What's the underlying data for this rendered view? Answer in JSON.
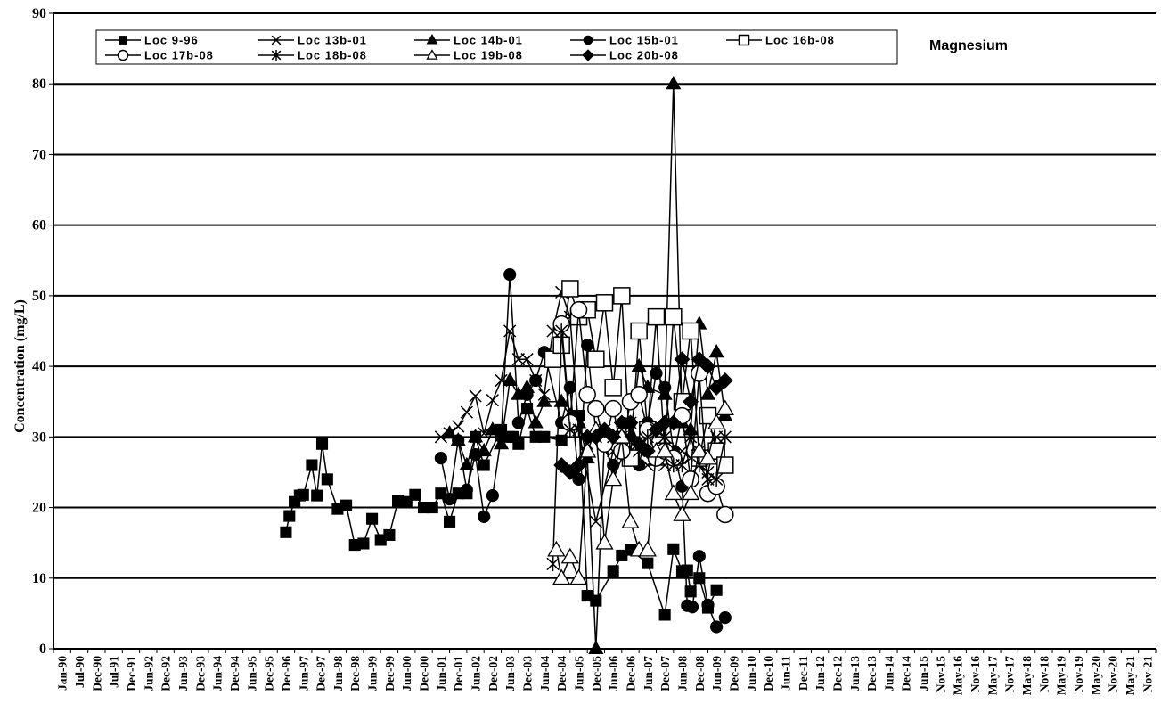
{
  "chart_data": {
    "type": "line",
    "title": "Magnesium",
    "ylabel": "Concentration (mg/L)",
    "xlabel": "",
    "ylim": [
      0,
      90
    ],
    "yticks": [
      0,
      10,
      20,
      30,
      40,
      50,
      60,
      70,
      80,
      90
    ],
    "xticks": [
      "Jan-90",
      "Jul-90",
      "Dec-90",
      "Jul-91",
      "Dec-91",
      "Jun-92",
      "Dec-92",
      "Jun-93",
      "Dec-93",
      "Jun-94",
      "Dec-94",
      "Jun-95",
      "Dec-95",
      "Dec-96",
      "Jun-97",
      "Dec-97",
      "Jun-98",
      "Dec-98",
      "Jun-99",
      "Dec-99",
      "Jun-00",
      "Dec-00",
      "Jun-01",
      "Dec-01",
      "Jun-02",
      "Dec-02",
      "Jun-03",
      "Dec-03",
      "Jun-04",
      "Dec-04",
      "Jun-05",
      "Dec-05",
      "Jun-06",
      "Dec-06",
      "Jun-07",
      "Dec-07",
      "Jun-08",
      "Dec-08",
      "Jun-09",
      "Dec-09",
      "Jun-10",
      "Dec-10",
      "Jun-11",
      "Dec-11",
      "Jun-12",
      "Dec-12",
      "Jun-13",
      "Dec-13",
      "Jun-14",
      "Dec-14",
      "Jun-15",
      "Nov-15",
      "May-16",
      "Nov-16",
      "May-17",
      "Nov-17",
      "May-18",
      "Nov-18",
      "May-19",
      "Nov-19",
      "May-20",
      "Nov-20",
      "May-21",
      "Nov-21"
    ],
    "grid": "horizontal",
    "legend": "top-left",
    "series": [
      {
        "name": "Loc 9-96",
        "marker": "square-filled",
        "x": [
          13.0,
          13.2,
          13.5,
          13.8,
          14.0,
          14.5,
          14.8,
          15.1,
          15.4,
          16.0,
          16.5,
          17.0,
          17.5,
          18.0,
          18.5,
          19.0,
          19.5,
          20.0,
          20.5,
          21.0,
          21.5,
          22.0,
          22.5,
          23.0,
          23.5,
          24.0,
          24.5,
          25.5,
          26.0,
          26.2,
          26.5,
          27.0,
          27.5,
          28.0,
          29.0,
          30.0,
          30.5,
          31.0,
          32.0,
          32.5,
          33.0,
          34.0,
          35.0,
          35.5,
          36.0,
          36.3,
          36.5,
          37.0,
          37.5,
          38.0
        ],
        "y": [
          16.5,
          18.8,
          20.8,
          21.7,
          21.8,
          26.0,
          21.7,
          29.0,
          24.0,
          19.8,
          20.3,
          14.7,
          14.9,
          18.4,
          15.4,
          16.1,
          20.9,
          20.8,
          21.8,
          20.0,
          20.0,
          22.0,
          18.0,
          22.0,
          22.0,
          30.0,
          26.0,
          31.0,
          30.0,
          30.0,
          29.0,
          34.0,
          30.0,
          30.0,
          29.5,
          33.0,
          7.5,
          6.8,
          11.0,
          13.2,
          14.0,
          12.1,
          4.8,
          14.1,
          11.0,
          11.1,
          8.1,
          10.0,
          5.8,
          8.3
        ]
      },
      {
        "name": "Loc 13b-01",
        "marker": "x",
        "x": [
          22.0,
          22.5,
          23.0,
          23.5,
          24.0,
          24.5,
          25.0,
          25.5,
          26.0,
          26.5,
          27.0,
          27.5,
          28.0,
          28.5,
          29.0,
          29.5,
          30.0,
          31.0,
          32.0,
          33.0,
          34.0,
          35.0,
          36.0,
          36.5,
          37.0,
          37.5,
          38.0
        ],
        "y": [
          30.0,
          30.5,
          31.5,
          33.5,
          35.8,
          30.5,
          35.2,
          38.0,
          45.0,
          41.0,
          41.0,
          38.0,
          36.0,
          45.0,
          50.5,
          47.0,
          31.0,
          18.0,
          28.0,
          28.0,
          26.0,
          26.0,
          28.0,
          27.0,
          28.0,
          25.0,
          30.0
        ]
      },
      {
        "name": "Loc 14b-01",
        "marker": "triangle-filled",
        "x": [
          22.5,
          23.0,
          23.5,
          24.0,
          24.5,
          25.0,
          25.5,
          26.0,
          26.5,
          27.0,
          27.5,
          28.0,
          29.0,
          29.5,
          30.0,
          30.5,
          31.0,
          31.5,
          32.0,
          33.0,
          33.5,
          34.0,
          35.0,
          35.5,
          36.0,
          36.5,
          37.0,
          37.5,
          38.0,
          38.5
        ],
        "y": [
          30.5,
          29.5,
          26.0,
          30.0,
          28.0,
          31.0,
          29.0,
          38.0,
          36.0,
          37.0,
          32.0,
          35.0,
          35.0,
          33.0,
          32.0,
          27.0,
          0.0,
          30.0,
          24.0,
          30.0,
          40.0,
          37.0,
          36.0,
          80.0,
          32.0,
          31.0,
          46.0,
          36.0,
          42.0,
          33.0
        ]
      },
      {
        "name": "Loc 15b-01",
        "marker": "circle-filled",
        "x": [
          22.0,
          22.5,
          23.0,
          23.5,
          24.0,
          24.5,
          25.0,
          25.5,
          26.0,
          26.5,
          27.0,
          27.5,
          28.0,
          29.0,
          29.5,
          30.0,
          30.5,
          31.0,
          32.0,
          32.5,
          33.0,
          33.5,
          34.0,
          34.5,
          35.0,
          35.5,
          36.0,
          36.3,
          36.6,
          37.0,
          37.5,
          38.0,
          38.5
        ],
        "y": [
          27.0,
          21.2,
          29.5,
          22.5,
          27.5,
          18.7,
          21.7,
          30.0,
          53.0,
          32.0,
          36.0,
          38.0,
          42.0,
          32.0,
          37.0,
          24.0,
          43.0,
          30.5,
          26.0,
          30.0,
          32.0,
          26.0,
          32.0,
          39.0,
          37.0,
          28.0,
          23.0,
          6.1,
          5.9,
          13.1,
          6.2,
          3.1,
          4.4
        ]
      },
      {
        "name": "Loc 16b-08",
        "marker": "square-open",
        "x": [
          28.5,
          29.0,
          29.5,
          30.0,
          30.5,
          31.0,
          31.5,
          32.0,
          32.5,
          33.0,
          33.5,
          34.0,
          34.5,
          35.0,
          35.5,
          36.0,
          36.5,
          37.0,
          37.5,
          38.0,
          38.5
        ],
        "y": [
          41.0,
          43.0,
          51.0,
          47.0,
          48.0,
          41.0,
          49.0,
          37.0,
          50.0,
          27.0,
          45.0,
          31.0,
          47.0,
          28.0,
          47.0,
          35.0,
          45.0,
          27.0,
          33.0,
          28.0,
          26.0
        ]
      },
      {
        "name": "Loc 17b-08",
        "marker": "circle-open",
        "x": [
          29.0,
          29.5,
          30.0,
          30.5,
          31.0,
          31.5,
          32.0,
          32.5,
          33.0,
          33.5,
          34.0,
          34.5,
          35.0,
          35.5,
          36.0,
          36.5,
          37.0,
          37.5,
          38.0,
          38.5
        ],
        "y": [
          46.0,
          32.0,
          48.0,
          36.0,
          34.0,
          29.0,
          34.0,
          28.0,
          35.0,
          36.0,
          31.0,
          27.0,
          28.0,
          27.0,
          33.0,
          24.0,
          39.0,
          22.0,
          23.0,
          19.0
        ]
      },
      {
        "name": "Loc 18b-08",
        "marker": "asterisk",
        "x": [
          28.5,
          29.0,
          29.5,
          30.0,
          30.5,
          31.0,
          31.5,
          32.0,
          32.5,
          33.0,
          33.5,
          34.0,
          34.5,
          35.0,
          35.5,
          36.0,
          36.5,
          37.0,
          37.5,
          38.0,
          38.5
        ],
        "y": [
          12.0,
          45.0,
          31.0,
          31.0,
          29.0,
          30.0,
          31.0,
          30.0,
          30.0,
          32.0,
          28.0,
          30.0,
          31.0,
          30.0,
          26.0,
          26.0,
          30.0,
          26.0,
          24.0,
          24.0,
          30.0
        ]
      },
      {
        "name": "Loc 19b-08",
        "marker": "triangle-open",
        "x": [
          28.7,
          29.0,
          29.5,
          30.0,
          30.5,
          31.0,
          31.5,
          32.0,
          32.5,
          33.0,
          33.5,
          34.0,
          34.5,
          35.0,
          35.5,
          36.0,
          36.5,
          37.0,
          37.5,
          38.0,
          38.5
        ],
        "y": [
          14.0,
          10.0,
          13.0,
          10.0,
          28.0,
          31.0,
          15.0,
          24.0,
          30.0,
          18.0,
          14.0,
          14.0,
          28.0,
          28.0,
          22.0,
          19.0,
          22.0,
          28.0,
          27.0,
          32.0,
          34.0
        ]
      },
      {
        "name": "Loc 20b-08",
        "marker": "diamond-filled",
        "x": [
          29.0,
          29.5,
          30.0,
          30.5,
          31.0,
          31.5,
          32.0,
          32.5,
          33.0,
          33.5,
          34.0,
          34.5,
          35.0,
          35.5,
          36.0,
          36.5,
          37.0,
          37.5,
          38.0,
          38.5
        ],
        "y": [
          26.0,
          25.0,
          26.0,
          30.0,
          30.0,
          31.0,
          30.0,
          32.0,
          32.0,
          29.0,
          28.0,
          31.0,
          32.0,
          32.0,
          41.0,
          35.0,
          41.0,
          40.0,
          37.0,
          38.0
        ]
      }
    ]
  }
}
